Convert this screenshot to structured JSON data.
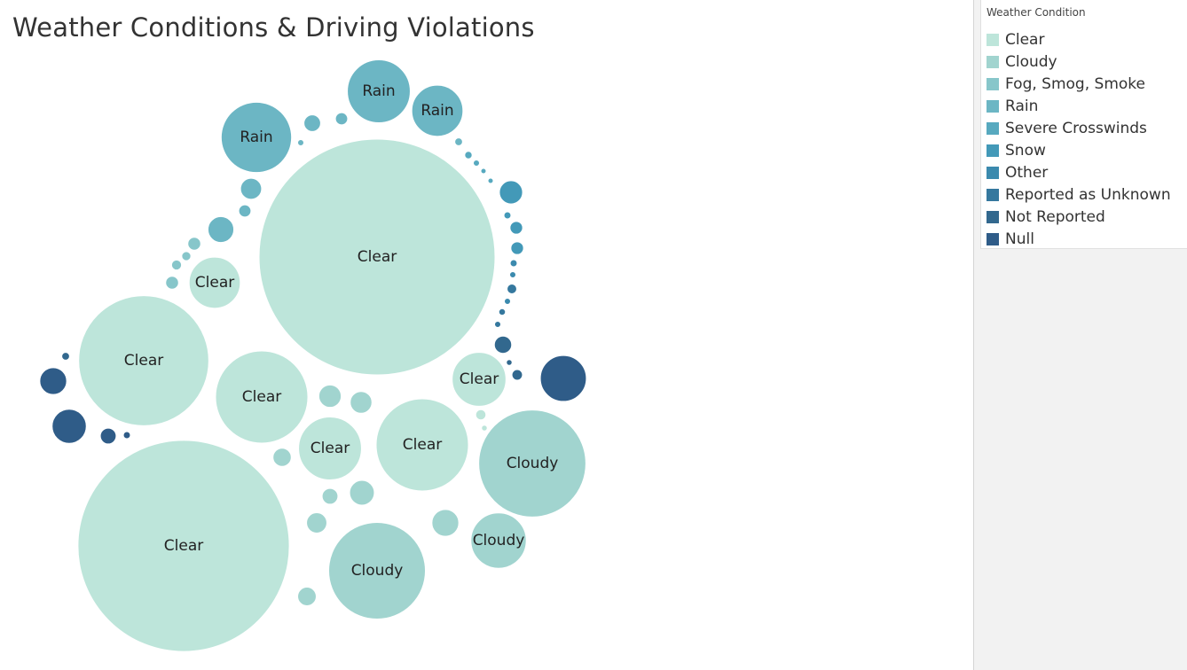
{
  "chart_data": {
    "type": "packed-bubble",
    "title": "Weather Conditions & Driving Violations",
    "legend": {
      "title": "Weather Condition",
      "placement": "top-right",
      "items": [
        {
          "label": "Clear",
          "color": "#bde5da"
        },
        {
          "label": "Cloudy",
          "color": "#a1d4cf"
        },
        {
          "label": "Fog, Smog, Smoke",
          "color": "#87c6ca"
        },
        {
          "label": "Rain",
          "color": "#6cb6c4"
        },
        {
          "label": "Severe Crosswinds",
          "color": "#57a9bf"
        },
        {
          "label": "Snow",
          "color": "#4399b8"
        },
        {
          "label": "Other",
          "color": "#3b8aae"
        },
        {
          "label": "Reported as Unknown",
          "color": "#35789e"
        },
        {
          "label": "Not Reported",
          "color": "#32688e"
        },
        {
          "label": "Null",
          "color": "#2f5c88"
        }
      ]
    },
    "bubbles": [
      {
        "category": "Clear",
        "label": "Clear",
        "size": 100
      },
      {
        "category": "Clear",
        "label": "Clear",
        "size": 80.2
      },
      {
        "category": "Clear",
        "label": "Clear",
        "size": 30.4
      },
      {
        "category": "Clear",
        "label": "Clear",
        "size": 15.3
      },
      {
        "category": "Clear",
        "label": "Clear",
        "size": 15.3
      },
      {
        "category": "Clear",
        "label": "Clear",
        "size": 7.1
      },
      {
        "category": "Clear",
        "label": "Clear",
        "size": 5.2
      },
      {
        "category": "Clear",
        "label": "Clear",
        "size": 4.7
      },
      {
        "category": "Clear",
        "label": "",
        "size": 0.19
      },
      {
        "category": "Clear",
        "label": "",
        "size": 0.06
      },
      {
        "category": "Cloudy",
        "label": "Cloudy",
        "size": 20.6
      },
      {
        "category": "Cloudy",
        "label": "Cloudy",
        "size": 16.8
      },
      {
        "category": "Cloudy",
        "label": "Cloudy",
        "size": 5.5
      },
      {
        "category": "Cloudy",
        "label": "",
        "size": 1.3
      },
      {
        "category": "Cloudy",
        "label": "",
        "size": 1.1
      },
      {
        "category": "Cloudy",
        "label": "",
        "size": 0.9
      },
      {
        "category": "Cloudy",
        "label": "",
        "size": 0.85
      },
      {
        "category": "Cloudy",
        "label": "",
        "size": 0.74
      },
      {
        "category": "Cloudy",
        "label": "",
        "size": 0.62
      },
      {
        "category": "Cloudy",
        "label": "",
        "size": 0.6
      },
      {
        "category": "Cloudy",
        "label": "",
        "size": 0.45
      },
      {
        "category": "Fog, Smog, Smoke",
        "label": "",
        "size": 0.3
      },
      {
        "category": "Fog, Smog, Smoke",
        "label": "",
        "size": 0.3
      },
      {
        "category": "Fog, Smog, Smoke",
        "label": "",
        "size": 0.18
      },
      {
        "category": "Fog, Smog, Smoke",
        "label": "",
        "size": 0.15
      },
      {
        "category": "Rain",
        "label": "Rain",
        "size": 8.9
      },
      {
        "category": "Rain",
        "label": "Rain",
        "size": 7.1
      },
      {
        "category": "Rain",
        "label": "Rain",
        "size": 4.7
      },
      {
        "category": "Rain",
        "label": "",
        "size": 1.2
      },
      {
        "category": "Rain",
        "label": "",
        "size": 0.8
      },
      {
        "category": "Rain",
        "label": "",
        "size": 0.5
      },
      {
        "category": "Rain",
        "label": "",
        "size": 0.27
      },
      {
        "category": "Rain",
        "label": "",
        "size": 0.27
      },
      {
        "category": "Rain",
        "label": "",
        "size": 0.11
      },
      {
        "category": "Rain",
        "label": "",
        "size": 0.07
      },
      {
        "category": "Severe Crosswinds",
        "label": "",
        "size": 0.1
      },
      {
        "category": "Severe Crosswinds",
        "label": "",
        "size": 0.07
      },
      {
        "category": "Severe Crosswinds",
        "label": "",
        "size": 0.05
      },
      {
        "category": "Severe Crosswinds",
        "label": "",
        "size": 0.04
      },
      {
        "category": "Snow",
        "label": "",
        "size": 0.97
      },
      {
        "category": "Snow",
        "label": "",
        "size": 0.29
      },
      {
        "category": "Snow",
        "label": "",
        "size": 0.29
      },
      {
        "category": "Snow",
        "label": "",
        "size": 0.09
      },
      {
        "category": "Other",
        "label": "",
        "size": 0.09
      },
      {
        "category": "Other",
        "label": "",
        "size": 0.07
      },
      {
        "category": "Other",
        "label": "",
        "size": 0.07
      },
      {
        "category": "Reported as Unknown",
        "label": "",
        "size": 0.17
      },
      {
        "category": "Reported as Unknown",
        "label": "",
        "size": 0.08
      },
      {
        "category": "Reported as Unknown",
        "label": "",
        "size": 0.07
      },
      {
        "category": "Not Reported",
        "label": "",
        "size": 0.54
      },
      {
        "category": "Not Reported",
        "label": "",
        "size": 0.2
      },
      {
        "category": "Not Reported",
        "label": "",
        "size": 0.11
      },
      {
        "category": "Not Reported",
        "label": "",
        "size": 0.06
      },
      {
        "category": "Null",
        "label": "",
        "size": 3.8
      },
      {
        "category": "Null",
        "label": "",
        "size": 2.1
      },
      {
        "category": "Null",
        "label": "",
        "size": 1.3
      },
      {
        "category": "Null",
        "label": "",
        "size": 0.45
      },
      {
        "category": "Null",
        "label": "",
        "size": 0.09
      }
    ]
  }
}
